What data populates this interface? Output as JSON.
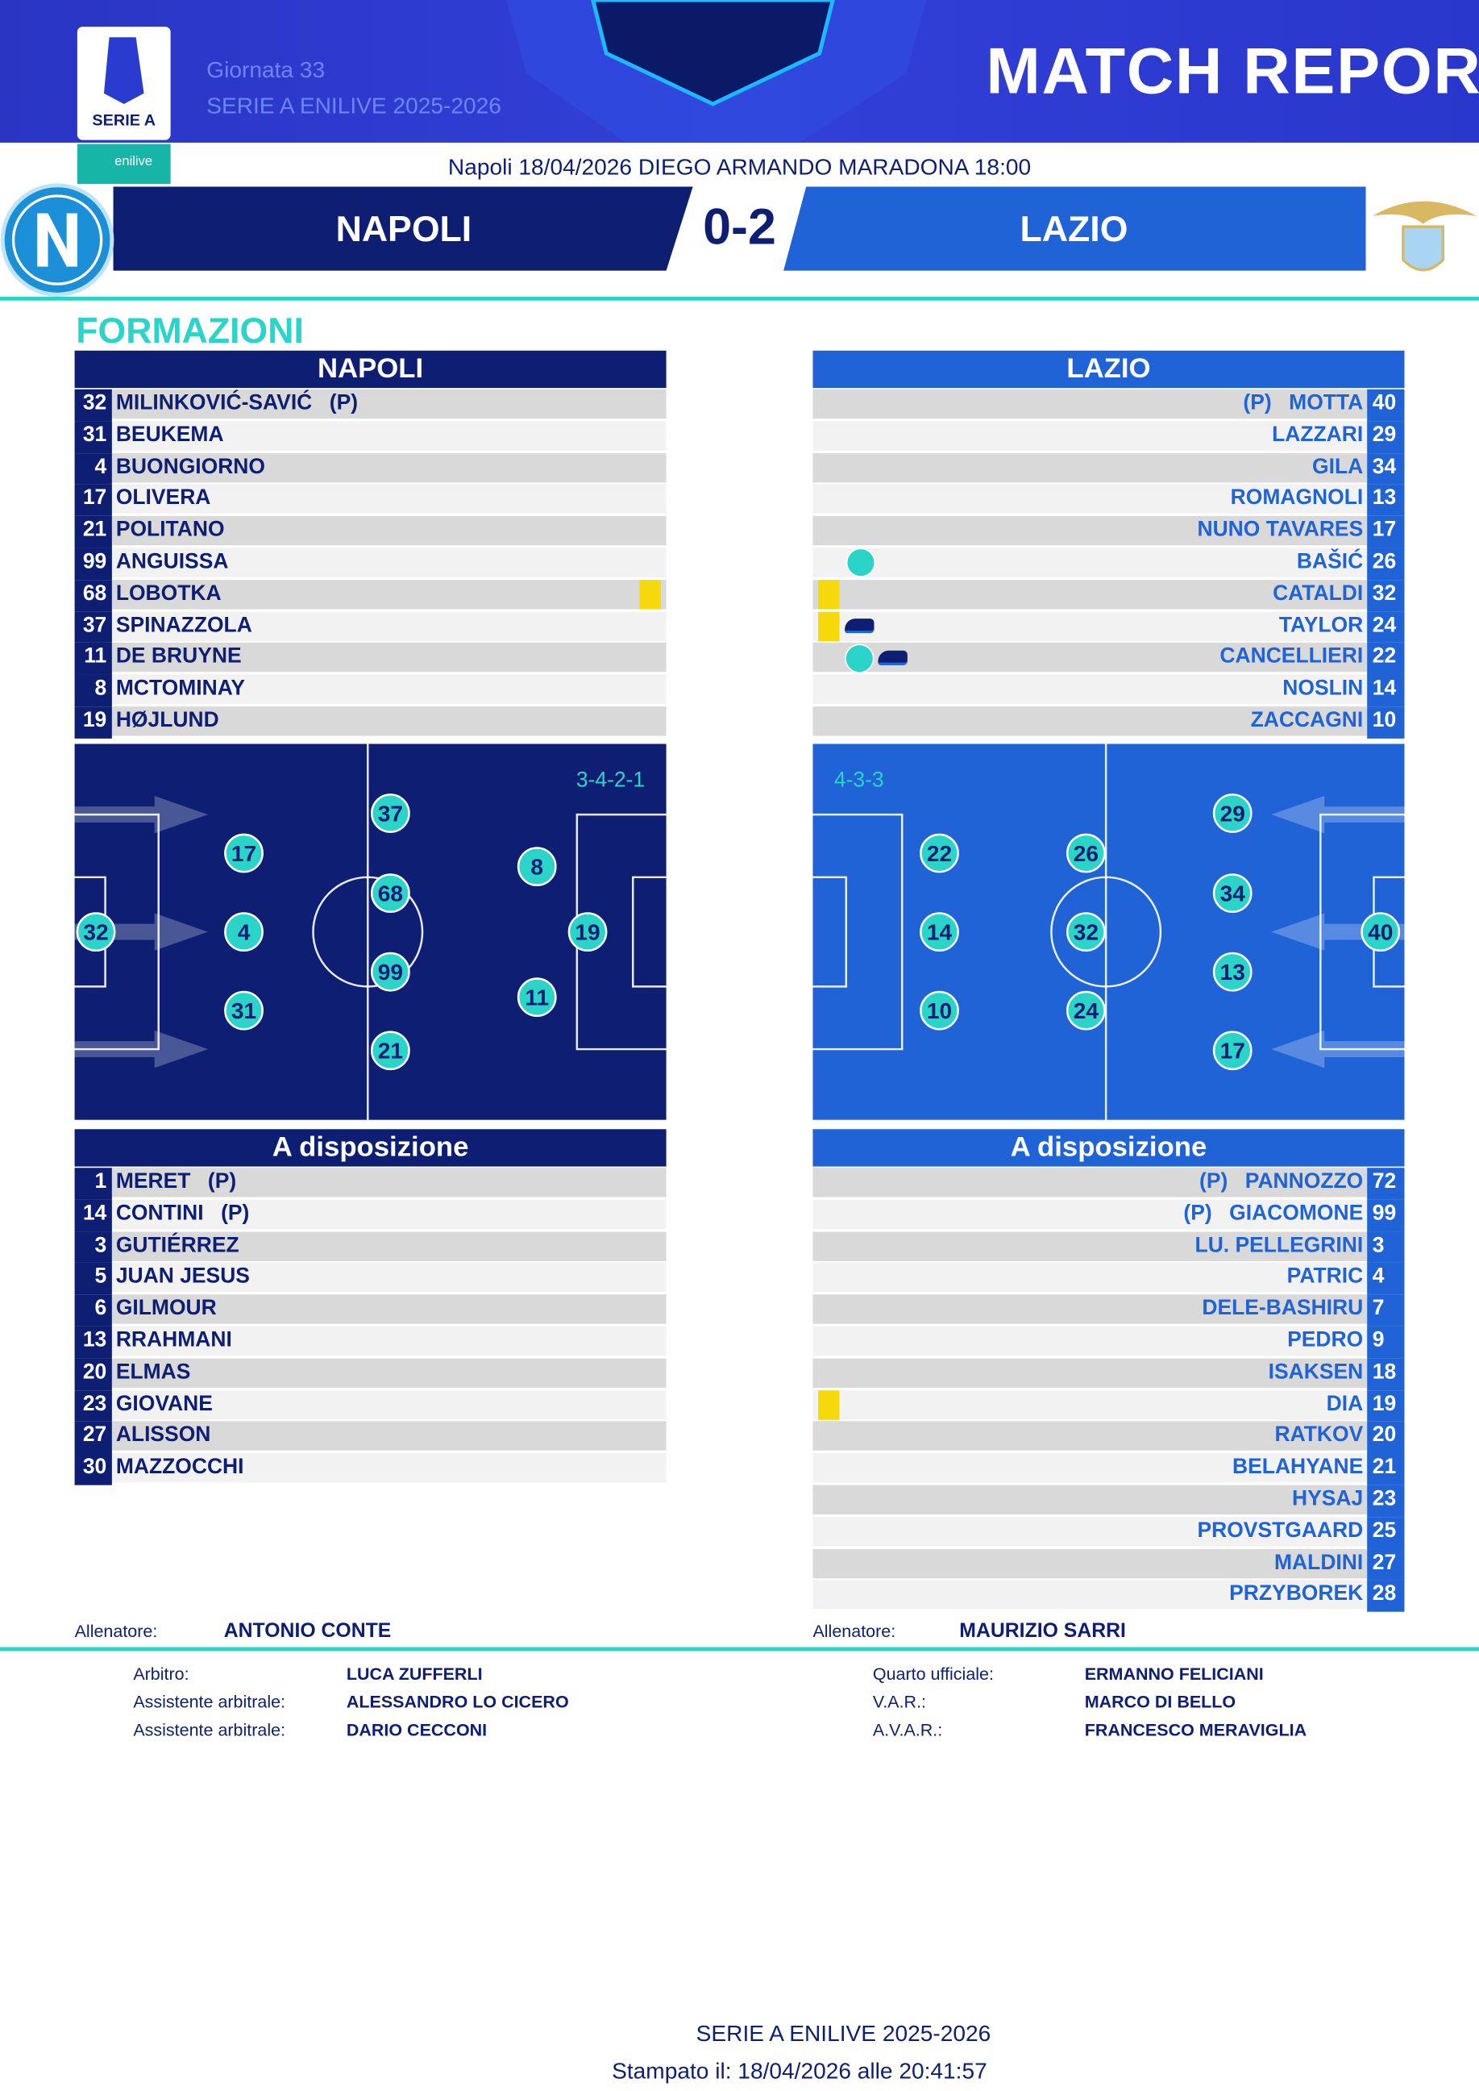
{
  "header": {
    "logo_text": "SERIE A",
    "sponsor": "enilive",
    "round": "Giornata 33",
    "competition": "SERIE A ENILIVE 2025-2026",
    "title": "MATCH REPORT"
  },
  "match": {
    "info": "Napoli 18/04/2026 DIEGO ARMANDO MARADONA 18:00",
    "home": "NAPOLI",
    "score": "0-2",
    "away": "LAZIO"
  },
  "section_title": "FORMAZIONI",
  "home": {
    "team": "NAPOLI",
    "starters": [
      {
        "number": 32,
        "name": "MILINKOVIĆ-SAVIĆ",
        "role": "(P)"
      },
      {
        "number": 31,
        "name": "BEUKEMA"
      },
      {
        "number": 4,
        "name": "BUONGIORNO"
      },
      {
        "number": 17,
        "name": "OLIVERA"
      },
      {
        "number": 21,
        "name": "POLITANO"
      },
      {
        "number": 99,
        "name": "ANGUISSA"
      },
      {
        "number": 68,
        "name": "LOBOTKA"
      },
      {
        "number": 37,
        "name": "SPINAZZOLA"
      },
      {
        "number": 11,
        "name": "DE BRUYNE"
      },
      {
        "number": 8,
        "name": "MCTOMINAY"
      },
      {
        "number": 19,
        "name": "HØJLUND"
      }
    ],
    "formation": "3-4-2-1",
    "pitch": [
      32,
      17,
      4,
      31,
      37,
      68,
      99,
      21,
      8,
      11,
      19
    ],
    "bench_title": "A disposizione",
    "bench": [
      {
        "number": 1,
        "name": "MERET",
        "role": "(P)"
      },
      {
        "number": 14,
        "name": "CONTINI",
        "role": "(P)"
      },
      {
        "number": 3,
        "name": "GUTIÉRREZ"
      },
      {
        "number": 5,
        "name": "JUAN JESUS"
      },
      {
        "number": 6,
        "name": "GILMOUR"
      },
      {
        "number": 13,
        "name": "RRAHMANI"
      },
      {
        "number": 20,
        "name": "ELMAS"
      },
      {
        "number": 23,
        "name": "GIOVANE"
      },
      {
        "number": 27,
        "name": "ALISSON"
      },
      {
        "number": 30,
        "name": "MAZZOCCHI"
      }
    ],
    "coach_label": "Allenatore:",
    "coach": "ANTONIO CONTE"
  },
  "away": {
    "team": "LAZIO",
    "starters": [
      {
        "number": 40,
        "name": "MOTTA",
        "role": "(P)"
      },
      {
        "number": 29,
        "name": "LAZZARI"
      },
      {
        "number": 34,
        "name": "GILA"
      },
      {
        "number": 13,
        "name": "ROMAGNOLI"
      },
      {
        "number": 17,
        "name": "NUNO TAVARES"
      },
      {
        "number": 26,
        "name": "BAŠIĆ"
      },
      {
        "number": 32,
        "name": "CATALDI"
      },
      {
        "number": 24,
        "name": "TAYLOR"
      },
      {
        "number": 22,
        "name": "CANCELLIERI"
      },
      {
        "number": 14,
        "name": "NOSLIN"
      },
      {
        "number": 10,
        "name": "ZACCAGNI"
      }
    ],
    "formation": "4-3-3",
    "pitch": [
      40,
      29,
      34,
      13,
      17,
      26,
      32,
      24,
      22,
      14,
      10
    ],
    "bench_title": "A disposizione",
    "bench": [
      {
        "number": 72,
        "name": "PANNOZZO",
        "role": "(P)"
      },
      {
        "number": 99,
        "name": "GIACOMONE",
        "role": "(P)"
      },
      {
        "number": 3,
        "name": "LU. PELLEGRINI"
      },
      {
        "number": 4,
        "name": "PATRIC"
      },
      {
        "number": 7,
        "name": "DELE-BASHIRU"
      },
      {
        "number": 9,
        "name": "PEDRO"
      },
      {
        "number": 18,
        "name": "ISAKSEN"
      },
      {
        "number": 19,
        "name": "DIA"
      },
      {
        "number": 20,
        "name": "RATKOV"
      },
      {
        "number": 21,
        "name": "BELAHYANE"
      },
      {
        "number": 23,
        "name": "HYSAJ"
      },
      {
        "number": 25,
        "name": "PROVSTGAARD"
      },
      {
        "number": 27,
        "name": "MALDINI"
      },
      {
        "number": 28,
        "name": "PRZYBOREK"
      }
    ],
    "coach_label": "Allenatore:",
    "coach": "MAURIZIO SARRI"
  },
  "officials": [
    {
      "label": "Arbitro:",
      "name": "LUCA ZUFFERLI"
    },
    {
      "label": "Assistente arbitrale:",
      "name": "ALESSANDRO LO CICERO"
    },
    {
      "label": "Assistente arbitrale:",
      "name": "DARIO CECCONI"
    },
    {
      "label": "Quarto ufficiale:",
      "name": "ERMANNO FELICIANI"
    },
    {
      "label": "V.A.R.:",
      "name": "MARCO DI BELLO"
    },
    {
      "label": "A.V.A.R.:",
      "name": "FRANCESCO MERAVIGLIA"
    }
  ],
  "footer": {
    "competition": "SERIE A ENILIVE 2025-2026",
    "printed": "Stampato il: 18/04/2026 alle 20:41:57"
  }
}
